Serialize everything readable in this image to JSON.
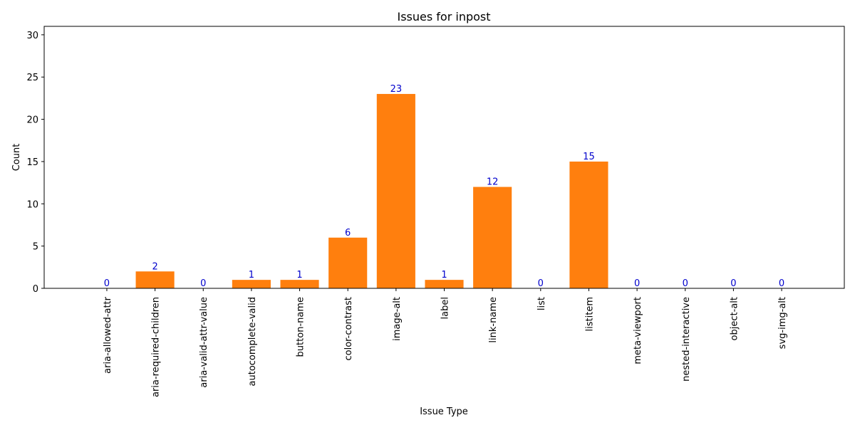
{
  "chart_data": {
    "type": "bar",
    "title": "Issues for inpost",
    "xlabel": "Issue Type",
    "ylabel": "Count",
    "ylim": [
      0,
      31
    ],
    "yticks": [
      0,
      5,
      10,
      15,
      20,
      25,
      30
    ],
    "categories": [
      "aria-allowed-attr",
      "aria-required-children",
      "aria-valid-attr-value",
      "autocomplete-valid",
      "button-name",
      "color-contrast",
      "image-alt",
      "label",
      "link-name",
      "list",
      "listitem",
      "meta-viewport",
      "nested-interactive",
      "object-alt",
      "svg-img-alt"
    ],
    "values": [
      0,
      2,
      0,
      1,
      1,
      6,
      23,
      1,
      12,
      0,
      15,
      0,
      0,
      0,
      0
    ],
    "bar_color": "#ff7f0e",
    "label_color": "#0000cc",
    "grid": false,
    "legend": "none"
  }
}
